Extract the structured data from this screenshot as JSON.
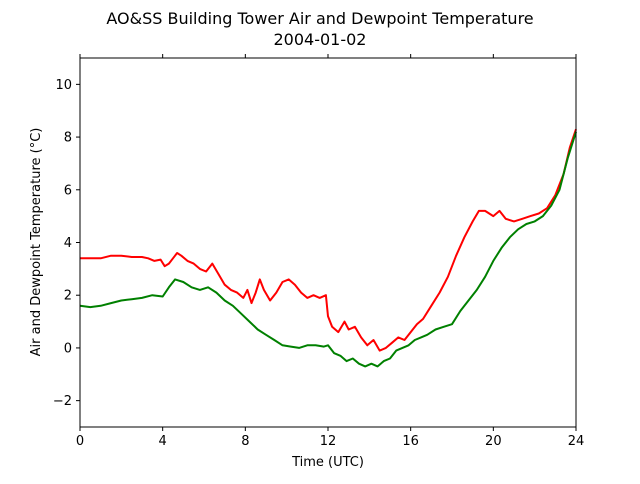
{
  "chart_data": {
    "type": "line",
    "title": "AO&SS Building Tower Air and Dewpoint Temperature",
    "subtitle": "2004-01-02",
    "xlabel": "Time (UTC)",
    "ylabel": "Air and Dewpoint Temperature (°C)",
    "xlim": [
      0,
      24
    ],
    "ylim": [
      -3,
      11
    ],
    "x_ticks": [
      0,
      4,
      8,
      12,
      16,
      20,
      24
    ],
    "y_ticks": [
      -2,
      0,
      2,
      4,
      6,
      8,
      10
    ],
    "grid": false,
    "series": [
      {
        "color": "#ff0000",
        "x": [
          0,
          0.5,
          1,
          1.5,
          2,
          2.5,
          3,
          3.3,
          3.6,
          3.9,
          4.1,
          4.3,
          4.5,
          4.7,
          4.9,
          5.2,
          5.5,
          5.8,
          6.1,
          6.4,
          6.7,
          7.0,
          7.3,
          7.6,
          7.9,
          8.1,
          8.3,
          8.5,
          8.7,
          8.9,
          9.2,
          9.5,
          9.8,
          10.1,
          10.4,
          10.7,
          11.0,
          11.3,
          11.6,
          11.9,
          12.0,
          12.2,
          12.5,
          12.8,
          13.0,
          13.3,
          13.6,
          13.9,
          14.2,
          14.5,
          14.8,
          15.1,
          15.4,
          15.7,
          16.0,
          16.3,
          16.6,
          17.0,
          17.4,
          17.8,
          18.2,
          18.6,
          19.0,
          19.3,
          19.6,
          20.0,
          20.3,
          20.6,
          21.0,
          21.4,
          21.8,
          22.2,
          22.6,
          23.0,
          23.4,
          23.7,
          24.0
        ],
        "values": [
          3.4,
          3.4,
          3.4,
          3.5,
          3.5,
          3.45,
          3.45,
          3.4,
          3.3,
          3.35,
          3.1,
          3.2,
          3.4,
          3.6,
          3.5,
          3.3,
          3.2,
          3.0,
          2.9,
          3.2,
          2.8,
          2.4,
          2.2,
          2.1,
          1.9,
          2.2,
          1.7,
          2.1,
          2.6,
          2.2,
          1.8,
          2.1,
          2.5,
          2.6,
          2.4,
          2.1,
          1.9,
          2.0,
          1.9,
          2.0,
          1.2,
          0.8,
          0.6,
          1.0,
          0.7,
          0.8,
          0.4,
          0.1,
          0.3,
          -0.1,
          0.0,
          0.2,
          0.4,
          0.3,
          0.6,
          0.9,
          1.1,
          1.6,
          2.1,
          2.7,
          3.5,
          4.2,
          4.8,
          5.2,
          5.2,
          5.0,
          5.2,
          4.9,
          4.8,
          4.9,
          5.0,
          5.1,
          5.3,
          5.8,
          6.6,
          7.6,
          8.3
        ]
      },
      {
        "color": "#008000",
        "x": [
          0,
          0.5,
          1,
          1.5,
          2,
          2.5,
          3,
          3.5,
          4,
          4.3,
          4.6,
          5.0,
          5.4,
          5.8,
          6.2,
          6.6,
          7.0,
          7.4,
          7.8,
          8.2,
          8.6,
          9.0,
          9.4,
          9.8,
          10.2,
          10.6,
          11.0,
          11.4,
          11.8,
          12.0,
          12.3,
          12.6,
          12.9,
          13.2,
          13.5,
          13.8,
          14.1,
          14.4,
          14.7,
          15.0,
          15.3,
          15.6,
          15.9,
          16.2,
          16.5,
          16.8,
          17.2,
          17.6,
          18.0,
          18.4,
          18.8,
          19.2,
          19.6,
          20.0,
          20.4,
          20.8,
          21.2,
          21.6,
          22.0,
          22.4,
          22.8,
          23.2,
          23.6,
          24.0
        ],
        "values": [
          1.6,
          1.55,
          1.6,
          1.7,
          1.8,
          1.85,
          1.9,
          2.0,
          1.95,
          2.3,
          2.6,
          2.5,
          2.3,
          2.2,
          2.3,
          2.1,
          1.8,
          1.6,
          1.3,
          1.0,
          0.7,
          0.5,
          0.3,
          0.1,
          0.05,
          0.0,
          0.1,
          0.1,
          0.05,
          0.1,
          -0.2,
          -0.3,
          -0.5,
          -0.4,
          -0.6,
          -0.7,
          -0.6,
          -0.7,
          -0.5,
          -0.4,
          -0.1,
          0.0,
          0.1,
          0.3,
          0.4,
          0.5,
          0.7,
          0.8,
          0.9,
          1.4,
          1.8,
          2.2,
          2.7,
          3.3,
          3.8,
          4.2,
          4.5,
          4.7,
          4.8,
          5.0,
          5.4,
          6.0,
          7.2,
          8.2
        ]
      }
    ]
  }
}
